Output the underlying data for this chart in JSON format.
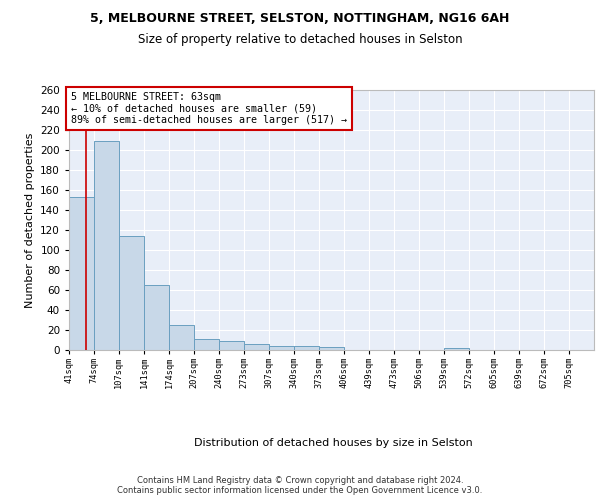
{
  "title1": "5, MELBOURNE STREET, SELSTON, NOTTINGHAM, NG16 6AH",
  "title2": "Size of property relative to detached houses in Selston",
  "xlabel": "Distribution of detached houses by size in Selston",
  "ylabel": "Number of detached properties",
  "bar_edges": [
    41,
    74,
    107,
    141,
    174,
    207,
    240,
    273,
    307,
    340,
    373,
    406,
    439,
    473,
    506,
    539,
    572,
    605,
    639,
    672,
    705
  ],
  "bar_heights": [
    153,
    209,
    114,
    65,
    25,
    11,
    9,
    6,
    4,
    4,
    3,
    0,
    0,
    0,
    0,
    2,
    0,
    0,
    0,
    0,
    0
  ],
  "bar_color": "#c8d8e8",
  "bar_edge_color": "#6a9fc0",
  "background_color": "#e8eef8",
  "grid_color": "#ffffff",
  "red_line_x": 63,
  "annotation_text": "5 MELBOURNE STREET: 63sqm\n← 10% of detached houses are smaller (59)\n89% of semi-detached houses are larger (517) →",
  "annotation_box_color": "#ffffff",
  "annotation_border_color": "#cc0000",
  "footer": "Contains HM Land Registry data © Crown copyright and database right 2024.\nContains public sector information licensed under the Open Government Licence v3.0.",
  "tick_labels": [
    "41sqm",
    "74sqm",
    "107sqm",
    "141sqm",
    "174sqm",
    "207sqm",
    "240sqm",
    "273sqm",
    "307sqm",
    "340sqm",
    "373sqm",
    "406sqm",
    "439sqm",
    "473sqm",
    "506sqm",
    "539sqm",
    "572sqm",
    "605sqm",
    "639sqm",
    "672sqm",
    "705sqm"
  ],
  "ylim": [
    0,
    260
  ],
  "yticks": [
    0,
    20,
    40,
    60,
    80,
    100,
    120,
    140,
    160,
    180,
    200,
    220,
    240,
    260
  ]
}
